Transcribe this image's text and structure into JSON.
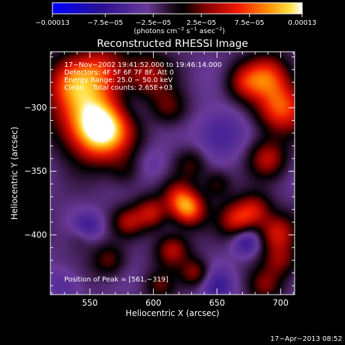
{
  "chart_data": {
    "type": "heatmap",
    "title": "Reconstructed RHESSI Image",
    "xlabel": "Heliocentric X (arcsec)",
    "ylabel": "Heliocentric Y (arcsec)",
    "xlim": [
      519,
      711
    ],
    "ylim": [
      -447,
      -256
    ],
    "x_ticks": [
      550,
      600,
      650,
      700
    ],
    "x_tick_labels": [
      "550",
      "600",
      "650",
      "700"
    ],
    "y_ticks": [
      -300,
      -350,
      -400
    ],
    "y_tick_labels": [
      "−300",
      "−350",
      "−400"
    ],
    "colorbar": {
      "range": [
        -0.00013,
        0.00013
      ],
      "ticks": [
        -0.00013,
        -7.5e-05,
        -2.5e-05,
        2.5e-05,
        7.5e-05,
        0.00013
      ],
      "tick_labels": [
        "−0.00013",
        "−7.5e−05",
        "−2.5e−05",
        "2.5e−05",
        "7.5e−05",
        "0.00013"
      ],
      "unit_parts": [
        "(photons cm",
        "−2",
        " s",
        "−1",
        " asec",
        "−2",
        ")"
      ]
    },
    "info_lines": [
      "17−Nov−2002 19:41:52.000 to 19:46:14.000",
      "Detectors: 4F 5F 6F 7F 8F, Att 0",
      "Energy Range: 25.0 − 50.0 keV",
      "Clean    Total counts: 2.65E+03"
    ],
    "peak_text": "Position of Peak = [561,−319]",
    "peak": [
      561,
      -319
    ],
    "footer_date": "17−Apr−2013 08:52",
    "colors": [
      "#0000ff",
      "#3a0078",
      "#5a2a8a",
      "#7a3a9a",
      "#1a0a1a",
      "#000000",
      "#7a0000",
      "#e01000",
      "#ff6a00",
      "#ffd000",
      "#ffffcc",
      "#ffffff"
    ],
    "blobs": [
      {
        "x": 561,
        "y": -319,
        "amp": 1.0,
        "s": 16
      },
      {
        "x": 548,
        "y": -305,
        "amp": 0.7,
        "s": 18
      },
      {
        "x": 535,
        "y": -280,
        "amp": 0.6,
        "s": 14
      },
      {
        "x": 560,
        "y": -270,
        "amp": 0.55,
        "s": 14
      },
      {
        "x": 595,
        "y": -275,
        "amp": 0.45,
        "s": 13
      },
      {
        "x": 612,
        "y": -300,
        "amp": 0.35,
        "s": 10
      },
      {
        "x": 700,
        "y": -300,
        "amp": 0.75,
        "s": 14
      },
      {
        "x": 690,
        "y": -275,
        "amp": 0.6,
        "s": 12
      },
      {
        "x": 672,
        "y": -280,
        "amp": 0.45,
        "s": 10
      },
      {
        "x": 690,
        "y": -340,
        "amp": 0.5,
        "s": 10
      },
      {
        "x": 630,
        "y": -345,
        "amp": 0.3,
        "s": 9
      },
      {
        "x": 620,
        "y": -370,
        "amp": 0.5,
        "s": 9
      },
      {
        "x": 628,
        "y": -380,
        "amp": 0.75,
        "s": 9
      },
      {
        "x": 598,
        "y": -383,
        "amp": 0.55,
        "s": 9
      },
      {
        "x": 580,
        "y": -390,
        "amp": 0.4,
        "s": 8
      },
      {
        "x": 666,
        "y": -388,
        "amp": 0.6,
        "s": 10
      },
      {
        "x": 680,
        "y": -380,
        "amp": 0.45,
        "s": 9
      },
      {
        "x": 650,
        "y": -360,
        "amp": 0.3,
        "s": 8
      },
      {
        "x": 697,
        "y": -398,
        "amp": 0.55,
        "s": 10
      },
      {
        "x": 700,
        "y": -420,
        "amp": 0.4,
        "s": 10
      },
      {
        "x": 688,
        "y": -440,
        "amp": 0.35,
        "s": 9
      },
      {
        "x": 545,
        "y": -400,
        "amp": 0.3,
        "s": 8
      },
      {
        "x": 615,
        "y": -412,
        "amp": 0.5,
        "s": 9
      },
      {
        "x": 565,
        "y": -420,
        "amp": 0.35,
        "s": 9
      },
      {
        "x": 633,
        "y": -430,
        "amp": 0.45,
        "s": 8
      },
      {
        "x": 605,
        "y": -440,
        "amp": 0.3,
        "s": 8
      },
      {
        "x": 578,
        "y": -350,
        "amp": 0.2,
        "s": 9
      },
      {
        "x": 652,
        "y": -320,
        "amp": -0.3,
        "s": 14
      },
      {
        "x": 580,
        "y": -300,
        "amp": -0.2,
        "s": 12
      },
      {
        "x": 548,
        "y": -395,
        "amp": -0.45,
        "s": 8
      },
      {
        "x": 673,
        "y": -405,
        "amp": -0.4,
        "s": 8
      },
      {
        "x": 650,
        "y": -440,
        "amp": -0.3,
        "s": 10
      },
      {
        "x": 530,
        "y": -440,
        "amp": -0.2,
        "s": 10
      },
      {
        "x": 600,
        "y": -345,
        "amp": -0.15,
        "s": 10
      }
    ]
  }
}
